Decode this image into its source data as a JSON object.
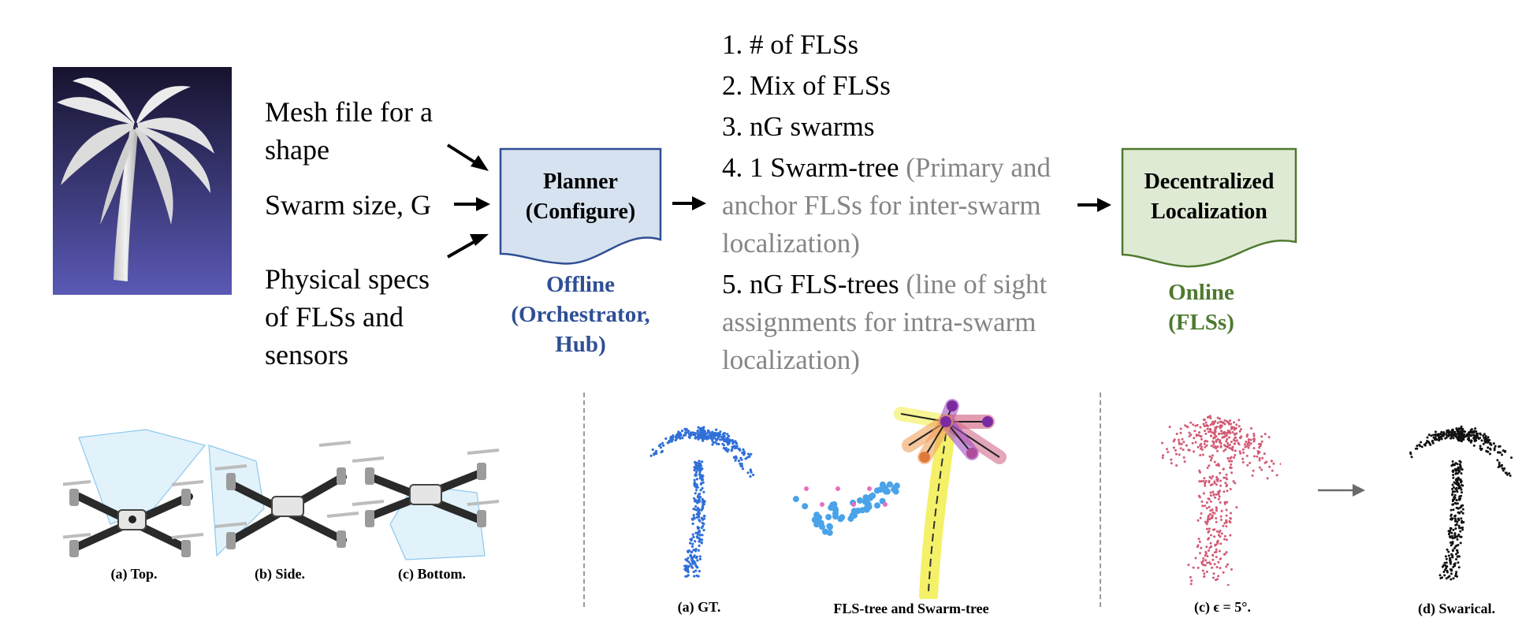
{
  "inputs": {
    "mesh_line1": "Mesh file for a",
    "mesh_line2": "shape",
    "swarm": "Swarm size, G",
    "physical_line1": "Physical specs",
    "physical_line2": "of FLSs and",
    "physical_line3": "sensors"
  },
  "planner": {
    "line1": "Planner",
    "line2": "(Configure)",
    "role_line1": "Offline",
    "role_line2": "(Orchestrator,",
    "role_line3": "Hub)",
    "color": "#2f4f95",
    "fill": "#d6e2ef"
  },
  "outputs": {
    "item1": "1. # of FLSs",
    "item2": "2. Mix of FLSs",
    "item3": "3. nG swarms",
    "item4_main": "4. 1 Swarm-tree",
    "item4_note1": "(Primary and",
    "item4_note2": "anchor FLSs for inter-swarm",
    "item4_note3": "localization)",
    "item5_main": "5. nG FLS-trees",
    "item5_note1": "(line of sight",
    "item5_note2": "assignments for intra-swarm",
    "item5_note3": "localization)"
  },
  "localization": {
    "line1": "Decentralized",
    "line2": "Localization",
    "role_line1": "Online",
    "role_line2": "(FLSs)",
    "color": "#4e7a2e",
    "fill": "#dfead5"
  },
  "captions": {
    "top": "(a) Top.",
    "side": "(b) Side.",
    "bottom": "(c) Bottom.",
    "gt": "(a) GT.",
    "trees": "FLS-tree and Swarm-tree",
    "epsilon": "(c) ϵ = 5°.",
    "swarical": "(d) Swarical."
  },
  "colors": {
    "mesh_bg_top": "#16132e",
    "mesh_bg_bottom": "#5a59b5",
    "gt_points": "#2f6fd8",
    "tree_points": "#4aa3e8",
    "noisy_points": "#d35a74",
    "result_points": "#111111"
  }
}
